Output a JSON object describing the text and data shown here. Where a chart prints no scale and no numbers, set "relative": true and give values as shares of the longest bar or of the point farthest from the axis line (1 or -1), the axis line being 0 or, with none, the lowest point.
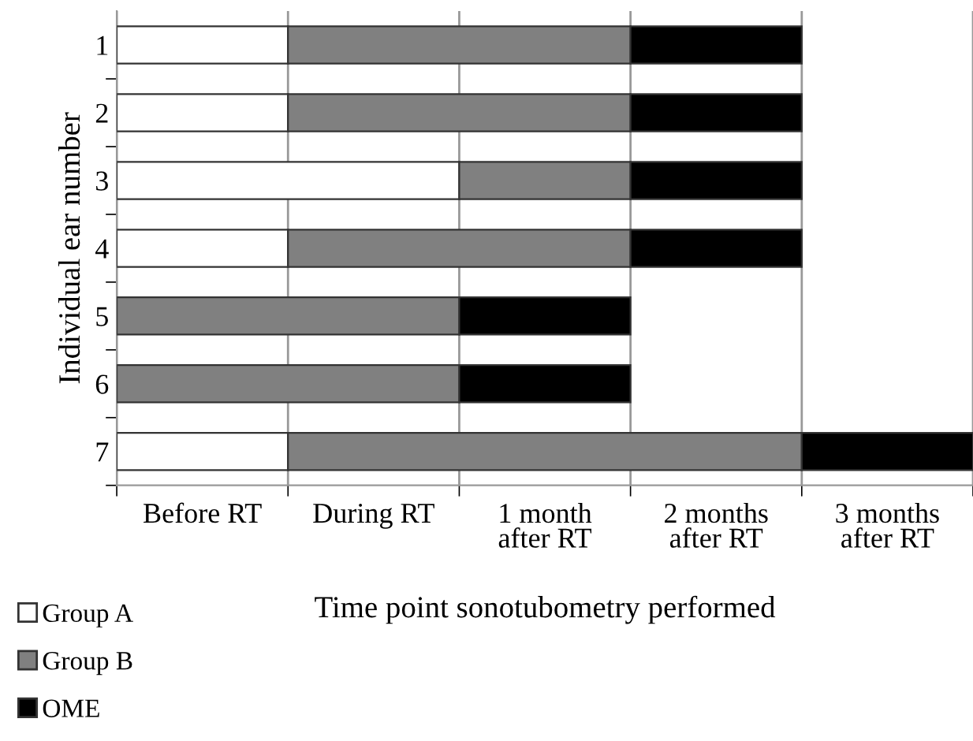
{
  "chart_data": {
    "type": "bar",
    "orientation": "horizontal",
    "stacked": true,
    "relative": true,
    "ylabel": "Individual ear number",
    "xlabel": "Time point sonotubometry performed",
    "categories": [
      "1",
      "2",
      "3",
      "4",
      "5",
      "6",
      "7"
    ],
    "series": [
      {
        "name": "Group A",
        "color": "#ffffff",
        "values": [
          0.2,
          0.2,
          0.4,
          0.2,
          0,
          0,
          0.2
        ]
      },
      {
        "name": "Group B",
        "color": "#808080",
        "values": [
          0.4,
          0.4,
          0.2,
          0.4,
          0.4,
          0.4,
          0.6
        ]
      },
      {
        "name": "OME",
        "color": "#000000",
        "values": [
          0.2,
          0.2,
          0.2,
          0.2,
          0.2,
          0.2,
          0.2
        ]
      }
    ],
    "annotations": [
      "Before RT",
      "During RT",
      "1 month\nafter RT",
      "2 months\nafter RT",
      "3 months\nafter RT"
    ],
    "grid": "x",
    "legend": "bottom left"
  }
}
